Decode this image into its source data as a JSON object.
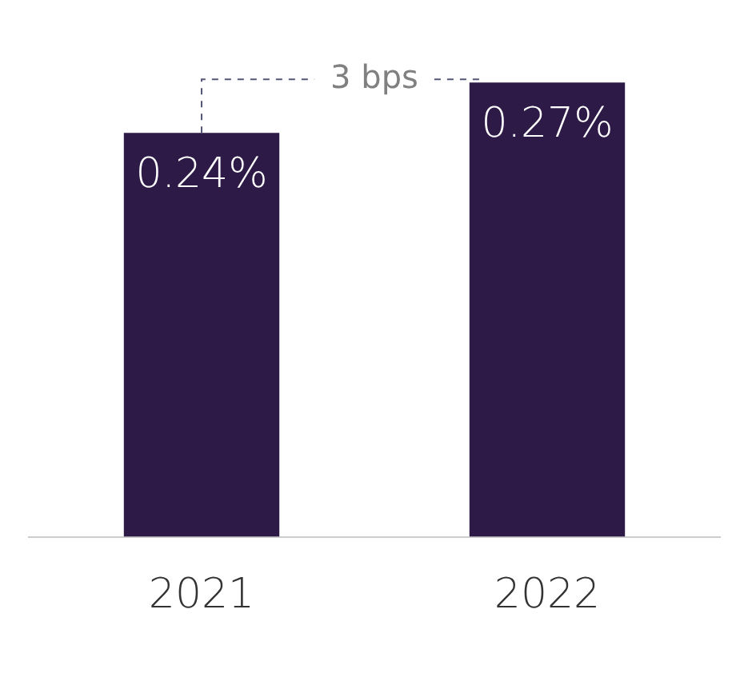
{
  "chart_data": {
    "type": "bar",
    "categories": [
      "2021",
      "2022"
    ],
    "values": [
      0.24,
      0.27
    ],
    "value_labels": [
      "0.24%",
      "0.27%"
    ],
    "color": "#2e1a47",
    "tick_labels": "x",
    "grid": false,
    "legend": false,
    "annotations": [
      "3 bps"
    ]
  }
}
